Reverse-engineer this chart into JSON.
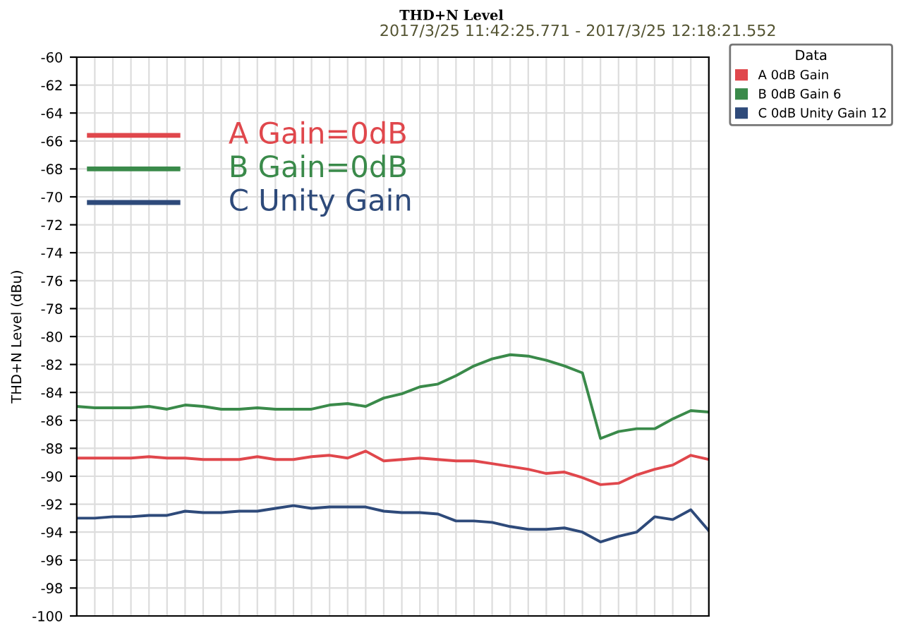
{
  "chart_data": {
    "type": "line",
    "title": "THD+N Level",
    "subtitle": "2017/3/25 11:42:25.771 - 2017/3/25 12:18:21.552",
    "ylabel": "THD+N Level (dBu)",
    "legend_title": "Data",
    "categories": [
      null,
      null,
      null,
      null,
      null,
      null,
      null,
      null,
      null,
      null,
      null,
      null,
      null,
      null,
      null,
      null,
      null,
      null,
      null,
      null,
      null,
      null,
      null,
      null,
      null,
      null,
      null,
      null,
      null,
      null,
      null,
      null,
      null,
      null,
      null,
      null
    ],
    "series": [
      {
        "name": "A 0dB Gain",
        "color": "#e0474c",
        "values": [
          -88.7,
          -88.7,
          -88.7,
          -88.7,
          -88.6,
          -88.7,
          -88.7,
          -88.8,
          -88.8,
          -88.8,
          -88.6,
          -88.8,
          -88.8,
          -88.6,
          -88.5,
          -88.7,
          -88.2,
          -88.9,
          -88.8,
          -88.7,
          -88.8,
          -88.9,
          -88.9,
          -89.1,
          -89.3,
          -89.5,
          -89.8,
          -89.7,
          -90.1,
          -90.6,
          -90.5,
          -89.9,
          -89.5,
          -89.2,
          -88.5,
          -88.8
        ]
      },
      {
        "name": "B 0dB Gain 6",
        "color": "#3a8a4a",
        "values": [
          -85.0,
          -85.1,
          -85.1,
          -85.1,
          -85.0,
          -85.2,
          -84.9,
          -85.0,
          -85.2,
          -85.2,
          -85.1,
          -85.2,
          -85.2,
          -85.2,
          -84.9,
          -84.8,
          -85.0,
          -84.4,
          -84.1,
          -83.6,
          -83.4,
          -82.8,
          -82.1,
          -81.6,
          -81.3,
          -81.4,
          -81.7,
          -82.1,
          -82.6,
          -87.3,
          -86.8,
          -86.6,
          -86.6,
          -85.9,
          -85.3,
          -85.4
        ]
      },
      {
        "name": "C 0dB Unity Gain 12",
        "color": "#2e4a7a",
        "values": [
          -93.0,
          -93.0,
          -92.9,
          -92.9,
          -92.8,
          -92.8,
          -92.5,
          -92.6,
          -92.6,
          -92.5,
          -92.5,
          -92.3,
          -92.1,
          -92.3,
          -92.2,
          -92.2,
          -92.2,
          -92.5,
          -92.6,
          -92.6,
          -92.7,
          -93.2,
          -93.2,
          -93.3,
          -93.6,
          -93.8,
          -93.8,
          -93.7,
          -94.0,
          -94.7,
          -94.3,
          -94.0,
          -92.9,
          -93.1,
          -92.4,
          -93.9
        ]
      }
    ],
    "annotations": [
      "A Gain=0dB",
      "B Gain=0dB",
      "C Unity Gain"
    ],
    "ylim": [
      -100,
      -60
    ],
    "yticks": [
      -60,
      -62,
      -64,
      -66,
      -68,
      -70,
      -72,
      -74,
      -76,
      -78,
      -80,
      -82,
      -84,
      -86,
      -88,
      -90,
      -92,
      -94,
      -96,
      -98,
      -100
    ],
    "grid": true,
    "legend": "top right",
    "marker": "none",
    "line_style": "solid"
  }
}
